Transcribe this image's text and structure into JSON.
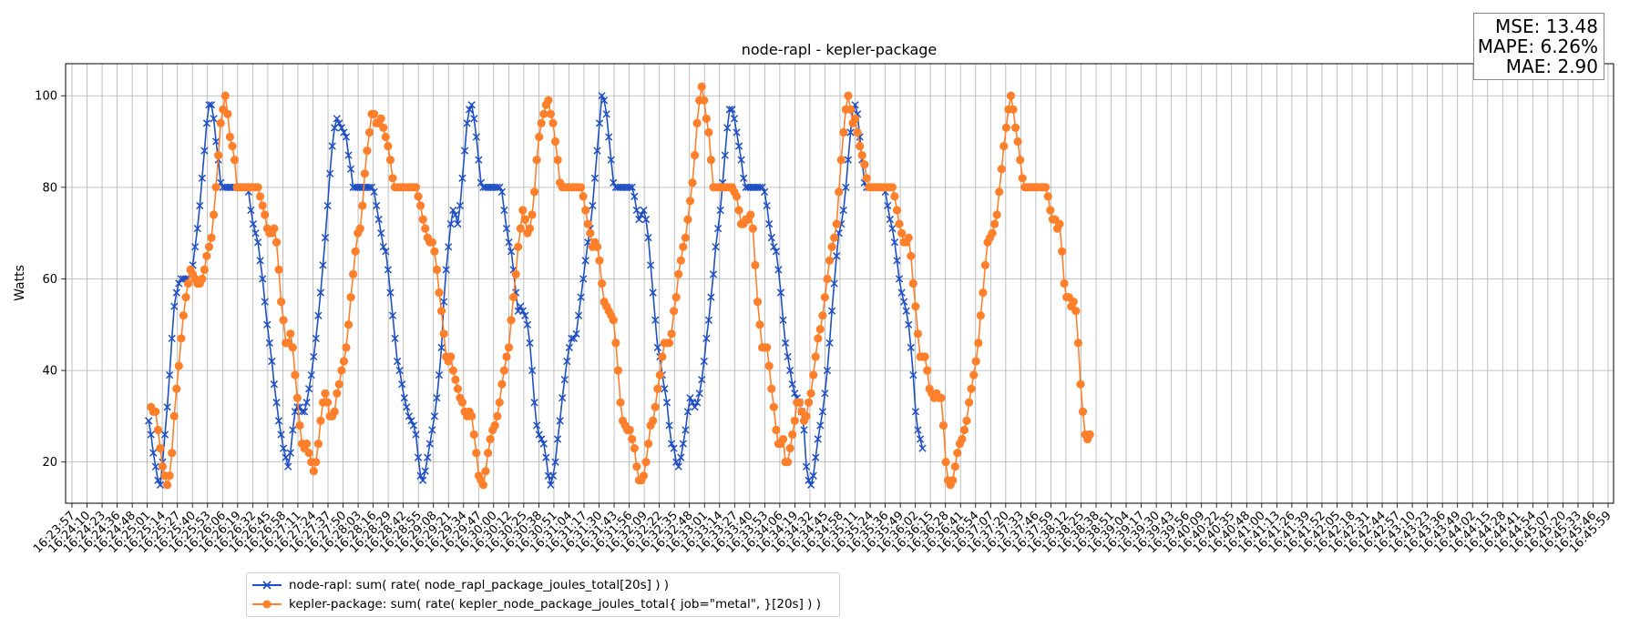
{
  "chart_data": {
    "type": "line",
    "title": "node-rapl - kepler-package",
    "xlabel": "",
    "ylabel": "Watts",
    "ylim": [
      11,
      107
    ],
    "yticks": [
      20,
      40,
      60,
      80,
      100
    ],
    "grid": true,
    "legend_position": "bottom-left",
    "xticklabels": [
      "16:23:57",
      "16:24:10",
      "16:24:23",
      "16:24:36",
      "16:24:48",
      "16:25:01",
      "16:25:14",
      "16:25:27",
      "16:25:40",
      "16:25:53",
      "16:26:06",
      "16:26:19",
      "16:26:32",
      "16:26:45",
      "16:26:58",
      "16:27:11",
      "16:27:24",
      "16:27:37",
      "16:27:50",
      "16:28:03",
      "16:28:16",
      "16:28:29",
      "16:28:42",
      "16:28:55",
      "16:29:08",
      "16:29:21",
      "16:29:34",
      "16:29:47",
      "16:30:00",
      "16:30:12",
      "16:30:25",
      "16:30:38",
      "16:30:51",
      "16:31:04",
      "16:31:17",
      "16:31:30",
      "16:31:43",
      "16:31:56",
      "16:32:09",
      "16:32:22",
      "16:32:35",
      "16:32:48",
      "16:33:01",
      "16:33:14",
      "16:33:27",
      "16:33:40",
      "16:33:53",
      "16:34:06",
      "16:34:19",
      "16:34:32",
      "16:34:45",
      "16:34:58",
      "16:35:11",
      "16:35:24",
      "16:35:36",
      "16:35:49",
      "16:36:02",
      "16:36:15",
      "16:36:28",
      "16:36:41",
      "16:36:54",
      "16:37:07",
      "16:37:20",
      "16:37:33",
      "16:37:46",
      "16:37:59",
      "16:38:12",
      "16:38:25",
      "16:38:38",
      "16:38:51",
      "16:39:04",
      "16:39:17",
      "16:39:30",
      "16:39:43",
      "16:39:56",
      "16:40:09",
      "16:40:22",
      "16:40:35",
      "16:40:48",
      "16:41:00",
      "16:41:13",
      "16:41:26",
      "16:41:39",
      "16:41:52",
      "16:42:05",
      "16:42:18",
      "16:42:31",
      "16:42:44",
      "16:42:57",
      "16:43:10",
      "16:43:23",
      "16:43:36",
      "16:43:49",
      "16:44:02",
      "16:44:15",
      "16:44:28",
      "16:44:41",
      "16:44:54",
      "16:45:07",
      "16:45:20",
      "16:45:33",
      "16:45:46",
      "16:45:59"
    ],
    "x_start": "16:25:03",
    "x_step_seconds": 2,
    "series": [
      {
        "name": "node-rapl: sum( rate( node_rapl_package_joules_total[20s] ) )",
        "color": "#1f4fc2",
        "marker": "x",
        "values": [
          29,
          26,
          22,
          19,
          16,
          15,
          20,
          26,
          32,
          39,
          47,
          54,
          57,
          59,
          60,
          60,
          60,
          60,
          61,
          63,
          67,
          71,
          76,
          82,
          88,
          94,
          98,
          98,
          95,
          90,
          86,
          81,
          80,
          80,
          80,
          80,
          80,
          80,
          80,
          80,
          80,
          80,
          80,
          79,
          75,
          72,
          70,
          68,
          64,
          60,
          55,
          50,
          46,
          42,
          37,
          33,
          29,
          26,
          23,
          21,
          19,
          22,
          27,
          31,
          32,
          32,
          31,
          31,
          33,
          36,
          39,
          43,
          47,
          52,
          57,
          63,
          69,
          76,
          83,
          89,
          93,
          95,
          94,
          93,
          92,
          91,
          87,
          84,
          80,
          80,
          80,
          80,
          80,
          80,
          80,
          80,
          80,
          79,
          76,
          73,
          70,
          67,
          66,
          62,
          57,
          52,
          47,
          42,
          40,
          37,
          34,
          32,
          30,
          29,
          28,
          26,
          21,
          17,
          16,
          18,
          21,
          24,
          27,
          30,
          34,
          39,
          45,
          55,
          62,
          67,
          72,
          75,
          74,
          72,
          76,
          82,
          88,
          94,
          97,
          98,
          95,
          91,
          86,
          81,
          80,
          80,
          80,
          80,
          80,
          80,
          80,
          80,
          79,
          75,
          71,
          68,
          66,
          62,
          57,
          53,
          54,
          53,
          52,
          50,
          46,
          40,
          33,
          28,
          26,
          25,
          24,
          21,
          17,
          15,
          17,
          20,
          25,
          29,
          34,
          38,
          42,
          45,
          47,
          47,
          48,
          52,
          56,
          60,
          64,
          68,
          71,
          76,
          82,
          88,
          94,
          100,
          99,
          96,
          91,
          86,
          81,
          80,
          80,
          80,
          80,
          80,
          80,
          80,
          80,
          78,
          75,
          73,
          74,
          75,
          73,
          69,
          63,
          57,
          51,
          45,
          43,
          39,
          36,
          33,
          28,
          24,
          23,
          20,
          19,
          21,
          24,
          27,
          31,
          34,
          33,
          32,
          33,
          35,
          38,
          42,
          47,
          51,
          56,
          61,
          67,
          71,
          75,
          81,
          87,
          93,
          97,
          97,
          95,
          92,
          89,
          86,
          82,
          80,
          80,
          80,
          80,
          80,
          80,
          80,
          80,
          79,
          76,
          72,
          69,
          67,
          66,
          62,
          57,
          51,
          46,
          43,
          40,
          37,
          35,
          34,
          33,
          31,
          27,
          19,
          16,
          15,
          17,
          21,
          25,
          28,
          31,
          35,
          40,
          46,
          53,
          59,
          65,
          70,
          72,
          75,
          80,
          86,
          92,
          97,
          98,
          96,
          91,
          86,
          81,
          80,
          80,
          80,
          80,
          80,
          80,
          80,
          80,
          79,
          76,
          73,
          71,
          68,
          64,
          60,
          57,
          55,
          53,
          50,
          45,
          39,
          31,
          27,
          25,
          23
        ],
        "x_offset": 0
      },
      {
        "name": "kepler-package: sum( rate( kepler_node_package_joules_total{ job=\"metal\", }[20s] ) )",
        "color": "#ff7f2a",
        "marker": "o",
        "values": [
          32,
          31,
          31,
          27,
          23,
          19,
          17,
          15,
          17,
          22,
          30,
          36,
          41,
          47,
          52,
          56,
          59,
          62,
          61,
          60,
          59,
          59,
          60,
          62,
          65,
          67,
          69,
          74,
          80,
          87,
          94,
          97,
          100,
          96,
          91,
          89,
          86,
          80,
          80,
          80,
          80,
          80,
          80,
          80,
          80,
          80,
          80,
          78,
          76,
          74,
          71,
          70,
          70,
          71,
          68,
          62,
          55,
          51,
          46,
          46,
          48,
          45,
          39,
          34,
          28,
          24,
          23,
          24,
          22,
          20,
          18,
          20,
          24,
          29,
          33,
          35,
          33,
          30,
          30,
          31,
          35,
          37,
          40,
          42,
          45,
          50,
          56,
          61,
          66,
          70,
          71,
          76,
          83,
          88,
          92,
          96,
          96,
          94,
          94,
          95,
          93,
          91,
          89,
          86,
          82,
          80,
          80,
          80,
          80,
          80,
          80,
          80,
          80,
          80,
          80,
          78,
          76,
          73,
          71,
          69,
          68,
          68,
          66,
          62,
          57,
          53,
          48,
          43,
          42,
          43,
          40,
          38,
          36,
          34,
          33,
          31,
          30,
          31,
          30,
          26,
          22,
          17,
          16,
          15,
          18,
          22,
          25,
          27,
          28,
          30,
          33,
          37,
          40,
          43,
          45,
          51,
          56,
          61,
          67,
          71,
          75,
          73,
          70,
          71,
          74,
          79,
          86,
          91,
          94,
          96,
          98,
          99,
          96,
          94,
          90,
          86,
          81,
          80,
          80,
          80,
          80,
          80,
          80,
          80,
          80,
          80,
          78,
          75,
          72,
          70,
          67,
          68,
          67,
          64,
          59,
          55,
          54,
          53,
          52,
          51,
          46,
          40,
          33,
          29,
          28,
          27,
          27,
          25,
          23,
          19,
          16,
          16,
          17,
          20,
          24,
          28,
          29,
          32,
          36,
          39,
          43,
          46,
          46,
          46,
          48,
          53,
          56,
          61,
          64,
          67,
          69,
          73,
          77,
          81,
          87,
          94,
          99,
          102,
          99,
          95,
          92,
          86,
          80,
          80,
          80,
          80,
          80,
          80,
          80,
          80,
          80,
          79,
          78,
          75,
          72,
          72,
          73,
          73,
          74,
          71,
          63,
          55,
          50,
          45,
          45,
          45,
          41,
          36,
          32,
          27,
          24,
          24,
          25,
          20,
          20,
          23,
          26,
          29,
          33,
          33,
          31,
          29,
          30,
          33,
          35,
          39,
          43,
          47,
          49,
          52,
          56,
          60,
          64,
          67,
          69,
          72,
          79,
          86,
          92,
          97,
          100,
          97,
          94,
          95,
          92,
          89,
          87,
          85,
          82,
          80,
          80,
          80,
          80,
          80,
          80,
          80,
          80,
          80,
          80,
          80,
          78,
          75,
          72,
          70,
          68,
          68,
          69,
          65,
          59,
          54,
          48,
          43,
          43,
          43,
          40,
          36,
          35,
          34,
          35,
          34,
          34,
          28,
          20,
          16,
          15,
          16,
          19,
          22,
          24,
          25,
          27,
          29,
          33,
          36,
          39,
          42,
          46,
          52,
          57,
          63,
          68,
          69,
          70,
          72,
          74,
          79,
          84,
          89,
          93,
          97,
          100,
          97,
          93,
          90,
          86,
          82,
          80,
          80,
          80,
          80,
          80,
          80,
          80,
          80,
          80,
          80,
          78,
          75,
          73,
          73,
          71,
          72,
          66,
          59,
          56,
          56,
          54,
          55,
          53,
          46,
          37,
          31,
          26,
          25,
          26
        ],
        "x_offset": 1
      }
    ]
  },
  "metrics": {
    "mse": "MSE: 13.48",
    "mape": "MAPE: 6.26%",
    "mae": "MAE: 2.90"
  },
  "legend": {
    "node_rapl_label": "node-rapl: sum( rate( node_rapl_package_joules_total[20s] ) )",
    "kepler_label": "kepler-package: sum( rate( kepler_node_package_joules_total{ job=\"metal\", }[20s] ) )"
  }
}
